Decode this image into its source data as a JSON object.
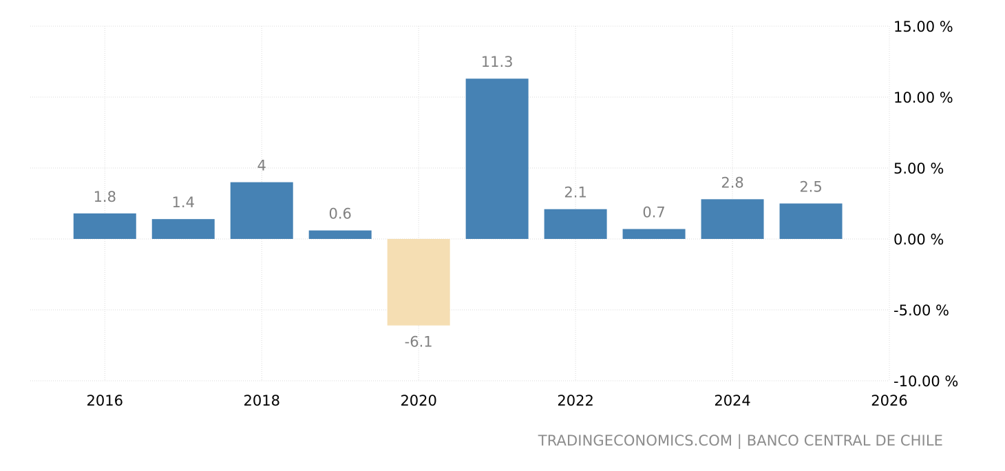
{
  "chart_data": {
    "type": "bar",
    "x": [
      2016,
      2017,
      2018,
      2019,
      2020,
      2021,
      2022,
      2023,
      2024,
      2025
    ],
    "values": [
      1.8,
      1.4,
      4,
      0.6,
      -6.1,
      11.3,
      2.1,
      0.7,
      2.8,
      2.5
    ],
    "data_labels": [
      "1.8",
      "1.4",
      "4",
      "0.6",
      "-6.1",
      "11.3",
      "2.1",
      "0.7",
      "2.8",
      "2.5"
    ],
    "x_ticks": [
      "2016",
      "2018",
      "2020",
      "2022",
      "2024",
      "2026"
    ],
    "x_tick_values": [
      2016,
      2018,
      2020,
      2022,
      2024,
      2026
    ],
    "y_ticks": [
      "15.00 %",
      "10.00 %",
      "5.00 %",
      "0.00 %",
      "-5.00 %",
      "-10.00 %"
    ],
    "y_tick_values": [
      15,
      10,
      5,
      0,
      -5,
      -10
    ],
    "xlim": [
      2015.05,
      2026
    ],
    "ylim": [
      -10,
      15
    ],
    "grid": true,
    "y_axis_position": "right",
    "title": "",
    "xlabel": "",
    "ylabel": "",
    "colors": {
      "positive": "#4682b4",
      "negative": "#f5deb3",
      "grid": "#d9d9d9",
      "label": "#808080",
      "tick": "#000000"
    }
  },
  "footer": {
    "source": "TRADINGECONOMICS.COM | BANCO CENTRAL DE CHILE"
  }
}
